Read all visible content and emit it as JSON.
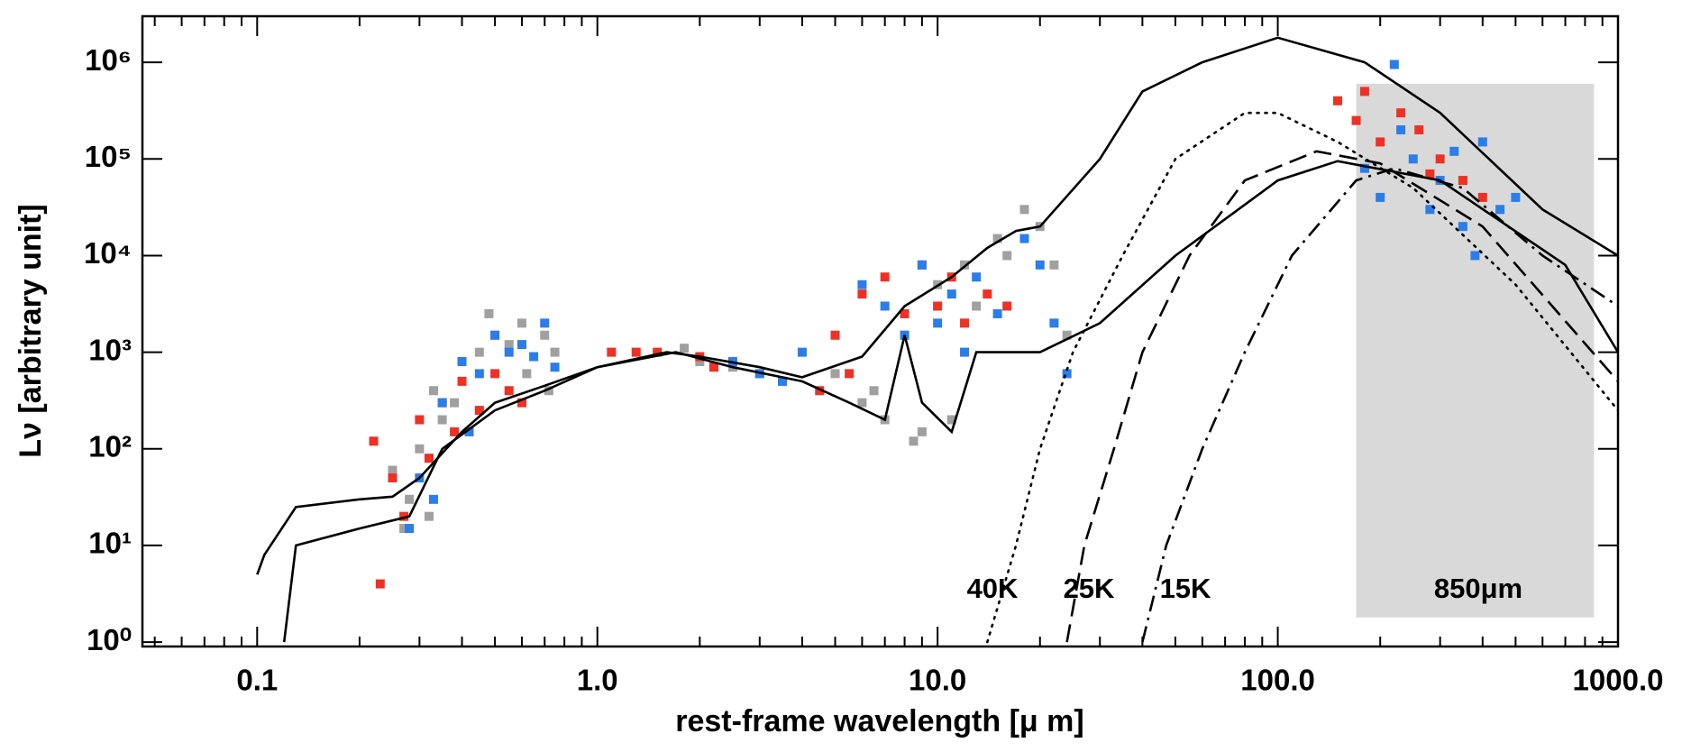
{
  "chart_data": {
    "type": "scatter",
    "x_label": "rest-frame wavelength [μ m]",
    "y_label": "Lν [arbitrary unit]",
    "xscale": "log",
    "yscale": "log",
    "xlim": [
      0.046,
      1000
    ],
    "ylim": [
      0.9,
      3000000
    ],
    "xticks": [
      0.1,
      {
        "value": 1,
        "label": "1.0"
      },
      {
        "value": 10,
        "label": "10.0"
      },
      {
        "value": 100,
        "label": "100.0"
      },
      {
        "value": 1000,
        "label": "1000.0"
      }
    ],
    "yticks": [
      {
        "value": 1,
        "label": "10⁰"
      },
      {
        "value": 10,
        "label": "10¹"
      },
      {
        "value": 100,
        "label": "10²"
      },
      {
        "value": 1000,
        "label": "10³"
      },
      {
        "value": 10000,
        "label": "10⁴"
      },
      {
        "value": 100000,
        "label": "10⁵"
      },
      {
        "value": 1000000,
        "label": "10⁶"
      }
    ],
    "minor_ticks": true,
    "shaded_region": {
      "xlim": [
        170,
        850
      ],
      "ylim": [
        1.8,
        600000
      ],
      "color": "#d9d9d9",
      "label": "850μm"
    },
    "annotations": [
      "40K",
      "25K",
      "15K"
    ],
    "series": [
      {
        "color": "#a0a0a0",
        "x": [
          0.25,
          0.28,
          0.3,
          0.33,
          0.35,
          0.4,
          0.45,
          0.5,
          0.55,
          0.6,
          0.7,
          0.75,
          0.27,
          0.38,
          0.62,
          2.0,
          2.5,
          3.0,
          1.8,
          3.5,
          5,
          6,
          7,
          8,
          9,
          10,
          12,
          15,
          18,
          20,
          22,
          24,
          8.5,
          11,
          13,
          6.5,
          16,
          0.32,
          0.48,
          0.72
        ],
        "values": [
          60,
          30,
          100,
          400,
          200,
          800,
          1000,
          1500,
          1200,
          2000,
          1500,
          1000,
          15,
          300,
          600,
          800,
          700,
          600,
          1100,
          500,
          600,
          300,
          200,
          1500,
          150,
          5000,
          8000,
          15000,
          30000,
          20000,
          8000,
          1500,
          120,
          200,
          3000,
          400,
          10000,
          20,
          2500,
          400
        ]
      },
      {
        "color": "#ee3124",
        "x": [
          0.22,
          0.23,
          0.25,
          0.27,
          0.3,
          0.32,
          0.35,
          0.38,
          0.4,
          0.45,
          0.5,
          0.55,
          0.6,
          1.1,
          1.3,
          1.5,
          2.0,
          2.2,
          4.5,
          5,
          5.5,
          6,
          7,
          8,
          9,
          10,
          11,
          12,
          14,
          16,
          150,
          170,
          200,
          230,
          260,
          300,
          350,
          400,
          180,
          280
        ],
        "values": [
          120,
          4,
          50,
          20,
          200,
          80,
          300,
          150,
          500,
          250,
          600,
          400,
          300,
          1000,
          1000,
          1000,
          900,
          700,
          400,
          1500,
          600,
          4000,
          6000,
          2500,
          8000,
          3000,
          6000,
          2000,
          4000,
          3000,
          400000,
          250000,
          150000,
          300000,
          200000,
          100000,
          60000,
          40000,
          500000,
          70000
        ]
      },
      {
        "color": "#2b7de9",
        "x": [
          0.28,
          0.3,
          0.33,
          0.35,
          0.4,
          0.45,
          0.5,
          0.55,
          0.6,
          0.65,
          0.7,
          0.75,
          0.42,
          2.5,
          3,
          3.5,
          4,
          6,
          7,
          8,
          9,
          10,
          11,
          12,
          13,
          15,
          18,
          20,
          22,
          24,
          180,
          200,
          220,
          250,
          280,
          300,
          350,
          400,
          450,
          500,
          230,
          330,
          380
        ],
        "values": [
          15,
          50,
          30,
          300,
          800,
          600,
          1500,
          1000,
          1200,
          900,
          2000,
          700,
          150,
          800,
          600,
          500,
          1000,
          5000,
          3000,
          1500,
          8000,
          2000,
          4000,
          1000,
          6000,
          2500,
          15000,
          8000,
          2000,
          600,
          80000,
          40000,
          950000,
          100000,
          30000,
          60000,
          20000,
          150000,
          30000,
          40000,
          200000,
          120000,
          10000
        ]
      }
    ],
    "lines": [
      {
        "style": "solid",
        "color": "#000000",
        "x": [
          0.1,
          0.105,
          0.13,
          0.2,
          0.25,
          0.3,
          0.4,
          0.5,
          0.7,
          1.0,
          1.6,
          2,
          3,
          4,
          6,
          8,
          11,
          14,
          17,
          20,
          30,
          40,
          60,
          100,
          180,
          300,
          600,
          1000
        ],
        "values": [
          5,
          8,
          25,
          30,
          32,
          50,
          150,
          300,
          450,
          700,
          1000,
          900,
          700,
          550,
          900,
          3000,
          6000,
          12000,
          18000,
          20000,
          100000,
          500000,
          1000000,
          1800000,
          1000000,
          300000,
          30000,
          10000
        ]
      },
      {
        "style": "solid",
        "color": "#000000",
        "x": [
          0.12,
          0.13,
          0.2,
          0.28,
          0.35,
          0.5,
          0.7,
          1.0,
          1.7,
          2.5,
          4,
          5.5,
          7,
          8,
          9,
          11,
          13,
          20,
          30,
          50,
          100,
          150,
          300,
          700,
          1000
        ],
        "values": [
          1,
          10,
          15,
          20,
          100,
          250,
          400,
          700,
          1000,
          700,
          500,
          300,
          200,
          1500,
          300,
          150,
          1000,
          1000,
          2000,
          10000,
          60000,
          95000,
          60000,
          8000,
          1000
        ]
      },
      {
        "style": "dotted",
        "color": "#000000",
        "x": [
          14,
          17,
          20,
          25,
          35,
          50,
          80,
          100,
          150,
          250,
          500,
          1000
        ],
        "values": [
          1,
          10,
          100,
          1000,
          10000,
          100000,
          300000,
          300000,
          150000,
          50000,
          5000,
          250
        ]
      },
      {
        "style": "dashed",
        "color": "#000000",
        "x": [
          24,
          27,
          33,
          40,
          55,
          80,
          130,
          200,
          400,
          1000
        ],
        "values": [
          1,
          10,
          100,
          1000,
          10000,
          60000,
          120000,
          90000,
          20000,
          500
        ]
      },
      {
        "style": "dashdot",
        "color": "#000000",
        "x": [
          40,
          47,
          60,
          80,
          110,
          170,
          220,
          350,
          600,
          1000
        ],
        "values": [
          1,
          10,
          100,
          1000,
          10000,
          60000,
          80000,
          50000,
          10000,
          3000
        ]
      }
    ]
  }
}
